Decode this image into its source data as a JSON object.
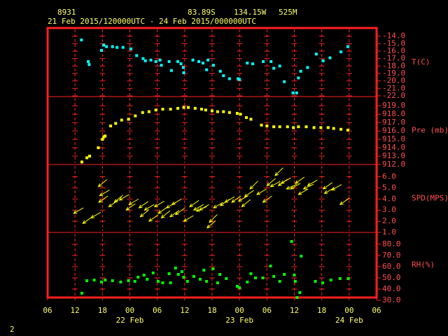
{
  "header": {
    "station": "8931",
    "latitude": "83.89S",
    "longitude": "134.15W",
    "elevation": "525M",
    "period": "21 Feb 2015/120000UTC - 24 Feb 2015/000000UTC"
  },
  "page_number": "2",
  "chart_data": [
    {
      "type": "scatter",
      "label": "T(C)",
      "color": "#00ffff",
      "xlim": [
        0,
        72
      ],
      "ylim": [
        -22.1,
        -12.9
      ],
      "yticks": [
        {
          "value": -14,
          "label": "-14.0"
        },
        {
          "value": -15,
          "label": "-15.0"
        },
        {
          "value": -16,
          "label": "-16.0"
        },
        {
          "value": -17,
          "label": "-17.0"
        },
        {
          "value": -18,
          "label": "-18.0"
        },
        {
          "value": -19,
          "label": "-19.0"
        },
        {
          "value": -20,
          "label": "-20.0"
        },
        {
          "value": -21,
          "label": "-21.0"
        },
        {
          "value": -22,
          "label": "-22.0"
        }
      ],
      "x": [
        7.4,
        8.9,
        9.1,
        11.8,
        12.3,
        12.9,
        14.2,
        15.2,
        16.5,
        18.2,
        19.5,
        20.9,
        21.4,
        22.6,
        23.7,
        24.6,
        24.9,
        26.6,
        27.1,
        28.5,
        29.2,
        29.7,
        29.8,
        31.8,
        33.1,
        34.0,
        34.8,
        35.1,
        36.3,
        37.8,
        38.5,
        39.8,
        41.7,
        42.0,
        43.7,
        44.9,
        47.2,
        48.9,
        49.5,
        50.8,
        51.8,
        53.7,
        54.5,
        54.9,
        55.4,
        56.9,
        58.8,
        60.3,
        61.8,
        64.2,
        65.7
      ],
      "values": [
        -14.5,
        -17.4,
        -17.8,
        -15.9,
        -15.2,
        -15.4,
        -15.4,
        -15.5,
        -15.5,
        -15.7,
        -16.6,
        -17.0,
        -17.3,
        -17.2,
        -17.4,
        -17.2,
        -17.9,
        -17.4,
        -18.6,
        -17.4,
        -17.7,
        -18.2,
        -18.9,
        -17.2,
        -17.4,
        -17.6,
        -18.5,
        -17.2,
        -17.9,
        -18.7,
        -19.3,
        -19.7,
        -19.7,
        -19.8,
        -17.6,
        -17.7,
        -17.4,
        -17.4,
        -18.3,
        -18.0,
        -20.1,
        -21.6,
        -21.6,
        -19.6,
        -18.7,
        -18.2,
        -16.4,
        -17.3,
        -16.9,
        -16.1,
        -15.4
      ]
    },
    {
      "type": "scatter",
      "label": "Pre (mb)",
      "color": "#ffff00",
      "xlim": [
        0,
        72
      ],
      "ylim": [
        912,
        920.1
      ],
      "yticks": [
        {
          "value": 912,
          "label": "912.0"
        },
        {
          "value": 913,
          "label": "913.0"
        },
        {
          "value": 914,
          "label": "914.0"
        },
        {
          "value": 915,
          "label": "915.0"
        },
        {
          "value": 916,
          "label": "916.0"
        },
        {
          "value": 917,
          "label": "917.0"
        },
        {
          "value": 918,
          "label": "918.0"
        },
        {
          "value": 919,
          "label": "919.0"
        }
      ],
      "x": [
        7.5,
        8.6,
        9.2,
        11.1,
        12.0,
        12.3,
        12.6,
        13.8,
        14.9,
        16.2,
        17.7,
        19.2,
        20.8,
        22.2,
        23.7,
        25.2,
        26.9,
        28.5,
        29.8,
        30.8,
        32.3,
        33.7,
        34.6,
        36.0,
        37.2,
        38.5,
        39.8,
        41.5,
        42.2,
        43.5,
        44.5,
        46.8,
        48.0,
        49.5,
        50.8,
        52.5,
        53.8,
        54.9,
        56.6,
        58.3,
        59.8,
        61.4,
        62.6,
        64.2,
        65.7
      ],
      "values": [
        912.3,
        912.8,
        913.0,
        914.0,
        915.0,
        915.3,
        915.4,
        916.6,
        916.9,
        917.3,
        917.4,
        917.8,
        918.2,
        918.3,
        918.5,
        918.6,
        918.6,
        918.7,
        918.8,
        918.8,
        918.7,
        918.6,
        918.5,
        918.4,
        918.3,
        918.3,
        918.2,
        918.1,
        918.0,
        917.6,
        917.4,
        916.7,
        916.6,
        916.5,
        916.5,
        916.5,
        916.4,
        916.5,
        916.5,
        916.4,
        916.4,
        916.4,
        916.3,
        916.2,
        916.1
      ]
    },
    {
      "type": "vector",
      "label": "SPD(MPS)",
      "color": "#ffff00",
      "xlim": [
        0,
        72
      ],
      "ylim": [
        1.0,
        7.1
      ],
      "yticks": [
        {
          "value": 1,
          "label": "1.0"
        },
        {
          "value": 2,
          "label": "2.0"
        },
        {
          "value": 3,
          "label": "3.0"
        },
        {
          "value": 4,
          "label": "4.0"
        },
        {
          "value": 5,
          "label": "5.0"
        },
        {
          "value": 6,
          "label": "6.0"
        }
      ],
      "x": [
        5.7,
        7.7,
        9.5,
        11.1,
        11.2,
        11.4,
        13.4,
        14.6,
        15.7,
        17.2,
        17.8,
        20.0,
        20.3,
        21.2,
        22.2,
        23.4,
        24.2,
        24.9,
        26.0,
        26.8,
        27.2,
        28.0,
        29.8,
        31.1,
        32.0,
        32.6,
        33.2,
        34.9,
        35.4,
        36.3,
        37.8,
        38.8,
        40.3,
        41.8,
        42.5,
        43.1,
        44.3,
        45.8,
        47.1,
        48.0,
        48.8,
        49.8,
        50.5,
        51.1,
        52.3,
        53.2,
        54.2,
        54.9,
        56.0,
        56.9,
        60.3,
        60.6,
        62.2,
        64.0
      ],
      "values": [
        2.7,
        1.8,
        2.3,
        5.1,
        3.7,
        4.3,
        3.3,
        3.7,
        3.9,
        3.0,
        3.5,
        3.2,
        2.4,
        3.0,
        2.0,
        3.3,
        2.7,
        2.3,
        3.2,
        2.4,
        3.5,
        2.6,
        2.0,
        3.3,
        3.0,
        2.9,
        3.0,
        1.4,
        1.9,
        3.2,
        3.4,
        3.7,
        3.7,
        3.8,
        3.3,
        4.2,
        4.9,
        4.4,
        3.7,
        5.2,
        5.1,
        6.1,
        5.2,
        5.4,
        4.9,
        4.9,
        5.4,
        4.4,
        4.9,
        5.2,
        4.9,
        4.5,
        4.8,
        3.5
      ],
      "directions": [
        60,
        55,
        60,
        50,
        55,
        60,
        55,
        50,
        60,
        55,
        60,
        55,
        50,
        60,
        55,
        60,
        55,
        50,
        60,
        55,
        60,
        55,
        60,
        55,
        60,
        65,
        60,
        50,
        45,
        60,
        55,
        60,
        55,
        60,
        50,
        55,
        45,
        60,
        55,
        50,
        60,
        45,
        55,
        60,
        65,
        60,
        55,
        60,
        65,
        60,
        55,
        60,
        60,
        55
      ]
    },
    {
      "type": "scatter",
      "label": "RH(%)",
      "color": "#00ff00",
      "xlim": [
        0,
        72
      ],
      "ylim": [
        32.5,
        90.6
      ],
      "yticks": [
        {
          "value": 30,
          "label": "30.0"
        },
        {
          "value": 40,
          "label": "40.0"
        },
        {
          "value": 50,
          "label": "50.0"
        },
        {
          "value": 60,
          "label": "60.0"
        },
        {
          "value": 70,
          "label": "70.0"
        },
        {
          "value": 80,
          "label": "80.0"
        }
      ],
      "x": [
        7.5,
        8.6,
        10.2,
        11.8,
        12.6,
        14.2,
        16.0,
        17.7,
        19.1,
        19.8,
        21.1,
        21.8,
        23.1,
        24.2,
        25.2,
        26.6,
        26.9,
        28.0,
        28.6,
        29.4,
        29.8,
        30.6,
        32.0,
        33.4,
        34.2,
        34.8,
        36.2,
        37.2,
        37.7,
        39.1,
        41.5,
        42.0,
        43.7,
        44.5,
        45.5,
        47.1,
        48.8,
        49.5,
        50.8,
        51.8,
        53.4,
        54.0,
        54.2,
        54.6,
        55.2,
        55.5,
        58.6,
        60.2,
        62.0,
        64.0,
        65.8
      ],
      "values": [
        36.3,
        47.5,
        48.1,
        46.3,
        48.1,
        47.5,
        46.3,
        47.5,
        46.9,
        50.6,
        52.5,
        48.8,
        54.4,
        46.9,
        45.6,
        53.8,
        45.6,
        58.8,
        53.1,
        55.6,
        50.6,
        46.9,
        51.3,
        48.8,
        56.9,
        46.9,
        58.1,
        45.6,
        53.1,
        49.4,
        42.5,
        41.3,
        46.3,
        53.8,
        50.0,
        50.0,
        60.6,
        51.3,
        46.9,
        53.1,
        82.5,
        52.5,
        46.9,
        32.5,
        36.9,
        69.4,
        46.9,
        45.6,
        48.1,
        49.4,
        49.4
      ],
      "xticks": [
        {
          "value": 0,
          "label": "06"
        },
        {
          "value": 6,
          "label": "12"
        },
        {
          "value": 12,
          "label": "18"
        },
        {
          "value": 18,
          "label": "00"
        },
        {
          "value": 24,
          "label": "06"
        },
        {
          "value": 30,
          "label": "12"
        },
        {
          "value": 36,
          "label": "18"
        },
        {
          "value": 42,
          "label": "00"
        },
        {
          "value": 48,
          "label": "06"
        },
        {
          "value": 54,
          "label": "12"
        },
        {
          "value": 60,
          "label": "18"
        },
        {
          "value": 66,
          "label": "00"
        },
        {
          "value": 72,
          "label": "06"
        }
      ],
      "x_date_labels": [
        {
          "value": 18,
          "label": "22 Feb"
        },
        {
          "value": 42,
          "label": "23 Feb"
        },
        {
          "value": 66,
          "label": "24 Feb"
        }
      ]
    }
  ]
}
